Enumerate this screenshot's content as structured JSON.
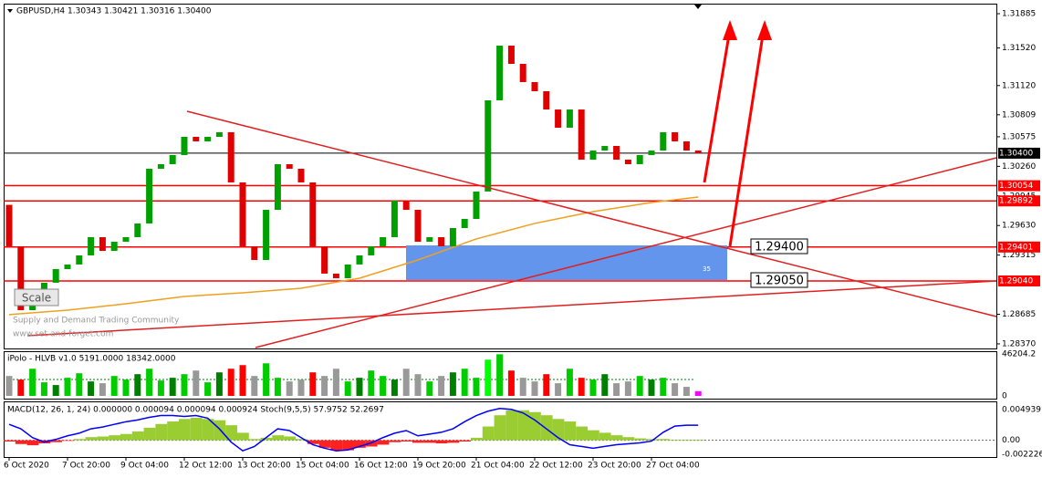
{
  "header": "GBPUSD,H4 1.30343 1.30421 1.30316 1.30400",
  "watermark": [
    "Supply and Demand Trading Community",
    "www.set-and-forget.com"
  ],
  "scale_button": "Scale",
  "chart_data": [
    {
      "type": "candlestick",
      "x": [
        "6 Oct 2020",
        null,
        null,
        null,
        null,
        "7 Oct 20:00",
        null,
        null,
        null,
        null,
        "9 Oct 04:00",
        null,
        null,
        null,
        null,
        "12 Oct 12:00",
        null,
        null,
        null,
        null,
        "13 Oct 20:00",
        null,
        null,
        null,
        null,
        "15 Oct 04:00",
        null,
        null,
        null,
        null,
        "16 Oct 12:00",
        null,
        null,
        null,
        null,
        "19 Oct 20:00",
        null,
        null,
        null,
        null,
        "21 Oct 04:00",
        null,
        null,
        null,
        null,
        "22 Oct 12:00",
        null,
        null,
        null,
        null,
        "23 Oct 20:00",
        null,
        null,
        null,
        null,
        "27 Oct 04:00",
        null,
        null,
        null,
        null
      ],
      "first_open": 1.2985,
      "close": [
        1.29409,
        1.28729,
        1.28923,
        1.29021,
        1.29166,
        1.29215,
        1.29312,
        1.29506,
        1.2936,
        1.29457,
        1.29506,
        1.29652,
        1.30234,
        1.30283,
        1.3038,
        1.30574,
        1.30526,
        1.30574,
        1.30623,
        1.30089,
        1.29409,
        1.29263,
        1.29797,
        1.30283,
        1.30234,
        1.30089,
        1.29409,
        1.29118,
        1.29069,
        1.29215,
        1.29312,
        1.29409,
        1.29506,
        1.29894,
        1.29797,
        1.29457,
        1.29506,
        1.29409,
        1.29603,
        1.297,
        1.29992,
        1.30963,
        1.31545,
        1.31351,
        1.31157,
        1.3106,
        1.30865,
        1.30671,
        1.30865,
        1.30331,
        1.30428,
        1.30477,
        1.30331,
        1.30283,
        1.3038,
        1.30428,
        1.30623,
        1.30526,
        1.30428,
        1.304
      ],
      "up_color": "#00a000",
      "down_color": "#e00000",
      "ylim": [
        1.28321,
        1.31992
      ],
      "yticks": [
        1.31885,
        {
          "value": 1.3152,
          "label": "1.31520"
        },
        {
          "value": 1.3112,
          "label": "1.31120"
        },
        1.30809,
        1.30575,
        {
          "value": 1.3026,
          "label": "1.30260"
        },
        1.29945,
        {
          "value": 1.2963,
          "label": "1.29630"
        },
        1.29315,
        1.28685,
        {
          "value": 1.2837,
          "label": "1.28370"
        }
      ],
      "levels": [
        {
          "value": 1.304,
          "label": "1.30400"
        },
        1.30054,
        1.29892,
        1.29401,
        {
          "value": 1.2904,
          "label": "1.29040"
        }
      ],
      "level_colors": [
        "#000000",
        "#ff0000",
        "#ff0000",
        "#ff0000",
        "#ff0000"
      ],
      "annotations": [
        "1.29400",
        "1.29050"
      ],
      "zone_label": "35",
      "ma": {
        "color": "#f0a020",
        "x": [
          0,
          5,
          10,
          15,
          20,
          25,
          30,
          35,
          40,
          45,
          50,
          55,
          59
        ],
        "values": [
          1.28681,
          1.28729,
          1.28797,
          1.28875,
          1.28914,
          1.28962,
          1.29069,
          1.29263,
          1.29487,
          1.29652,
          1.29778,
          1.29875,
          1.29933
        ]
      }
    },
    {
      "type": "bar",
      "title": "iPolo - HLVB v1.0 5191.0000 18342.0000",
      "values": [
        22000,
        18000,
        30000,
        15000,
        12000,
        20000,
        25000,
        16000,
        14000,
        22000,
        18000,
        24000,
        30000,
        17000,
        20000,
        24000,
        28000,
        15000,
        26000,
        30000,
        34000,
        22000,
        36000,
        20000,
        16000,
        18000,
        26000,
        22000,
        30000,
        16000,
        20000,
        28000,
        22000,
        18000,
        30000,
        24000,
        16000,
        22000,
        26000,
        30000,
        20000,
        40000,
        46000,
        28000,
        20000,
        16000,
        24000,
        14000,
        30000,
        20000,
        18000,
        24000,
        14000,
        16000,
        22000,
        18000,
        20000,
        14000,
        10000,
        5191
      ],
      "colors": [
        "#999999",
        "#ff0000",
        "#00cc00",
        "#00cc00",
        "#008000",
        "#00cc00",
        "#00cc00",
        "#008000",
        "#999999",
        "#00cc00",
        "#00cc00",
        "#008000",
        "#00cc00",
        "#00cc00",
        "#008000",
        "#00cc00",
        "#999999",
        "#00cc00",
        "#008000",
        "#ff0000",
        "#ff0000",
        "#999999",
        "#00cc00",
        "#00cc00",
        "#999999",
        "#999999",
        "#ff0000",
        "#999999",
        "#999999",
        "#00cc00",
        "#008000",
        "#00cc00",
        "#00cc00",
        "#008000",
        "#999999",
        "#999999",
        "#00cc00",
        "#999999",
        "#008000",
        "#00cc00",
        "#00cc00",
        "#00ff00",
        "#00cc00",
        "#ff0000",
        "#999999",
        "#999999",
        "#ff0000",
        "#999999",
        "#00cc00",
        "#ff0000",
        "#00cc00",
        "#008000",
        "#999999",
        "#999999",
        "#00cc00",
        "#008000",
        "#00cc00",
        "#999999",
        "#999999",
        "#ff00ff"
      ],
      "ylim": [
        0,
        48360
      ],
      "yticks": [
        46204.2,
        0
      ]
    },
    {
      "type": "macd",
      "title": "MACD(12, 26, 1, 24) 0.000000 0.000094 0.000094 0.000924  Stoch(9,5,5) 57.9752 52.2697",
      "values": [
        -0.0002,
        -0.0006,
        -0.0008,
        -0.0005,
        -0.0003,
        -0.0001,
        0.0002,
        0.0005,
        0.0006,
        0.0008,
        0.001,
        0.0014,
        0.002,
        0.0026,
        0.003,
        0.0034,
        0.0036,
        0.0034,
        0.0032,
        0.0024,
        0.0012,
        0.0002,
        0.0004,
        0.0008,
        0.0006,
        0.0002,
        -0.0006,
        -0.0012,
        -0.0016,
        -0.0016,
        -0.0012,
        -0.001,
        -0.0007,
        -0.0003,
        -0.0002,
        -0.0004,
        -0.0004,
        -0.0005,
        -0.0004,
        -0.0002,
        0.0004,
        0.0022,
        0.004,
        0.0048,
        0.0048,
        0.0045,
        0.004,
        0.0034,
        0.003,
        0.0022,
        0.0016,
        0.0012,
        0.0008,
        0.0005,
        0.0003,
        0.0002,
        0.0002,
        0.0001,
        0.0001,
        0.0001
      ],
      "pos_color": "#9acd32",
      "neg_color": "#ff2020",
      "line": {
        "color": "#0000ff",
        "values": [
          0.00254,
          0.00183,
          0.00042,
          -0.00028,
          0.00014,
          0.00071,
          0.00113,
          0.00183,
          0.00212,
          0.00254,
          0.00296,
          0.00324,
          0.00367,
          0.00395,
          0.00395,
          0.00381,
          0.00395,
          0.00353,
          0.00183,
          -0.00028,
          -0.00169,
          -0.00099,
          0.00042,
          0.00183,
          0.00155,
          0.00042,
          -0.00071,
          -0.00127,
          -0.00169,
          -0.00155,
          -0.00099,
          -0.00042,
          0.00042,
          0.00113,
          0.00155,
          0.00071,
          0.00099,
          0.00127,
          0.00183,
          0.00296,
          0.00395,
          0.00465,
          0.00508,
          0.00494,
          0.00437,
          0.00324,
          0.00183,
          0.00042,
          -0.00071,
          -0.00099,
          -0.00127,
          -0.00099,
          -0.00071,
          -0.00056,
          -0.00042,
          -0.00014,
          0.00127,
          0.00226,
          0.0024,
          0.0024
        ]
      },
      "ylim": [
        -0.00268,
        0.00607
      ],
      "yticks": [
        0.004939,
        {
          "value": 0,
          "label": "0.00"
        },
        -0.002226
      ]
    }
  ]
}
